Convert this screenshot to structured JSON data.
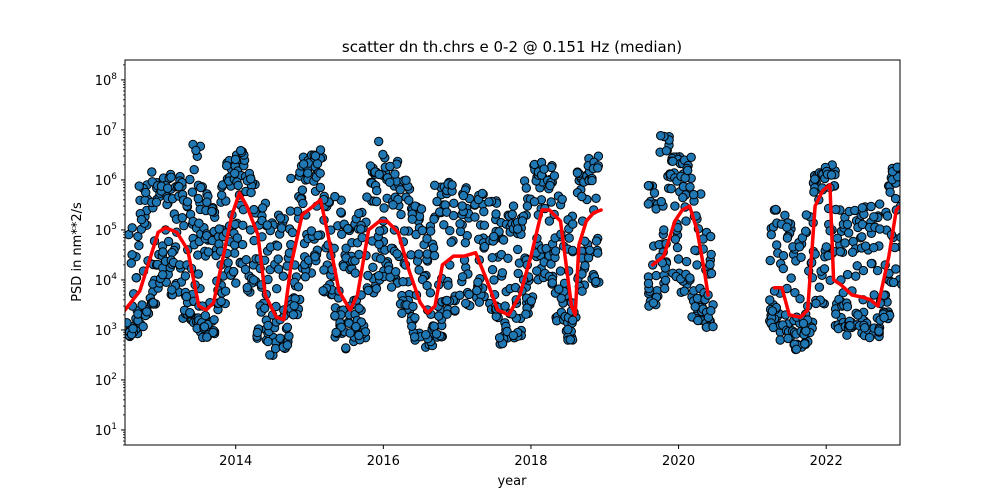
{
  "chart_data": {
    "type": "scatter",
    "title": "scatter dn th.chrs e 0-2 @ 0.151 Hz (median)",
    "xlabel": "year",
    "ylabel": "PSD in nm**2/s",
    "xlim": [
      2012.5,
      2023.0
    ],
    "ylim": [
      5,
      250000000
    ],
    "yscale": "log",
    "grid": false,
    "x_ticks": [
      2014,
      2016,
      2018,
      2020,
      2022
    ],
    "x_tick_labels": [
      "2014",
      "2016",
      "2018",
      "2020",
      "2022"
    ],
    "y_ticks": [
      10,
      100,
      1000,
      10000,
      100000,
      1000000,
      10000000,
      100000000
    ],
    "y_tick_labels": [
      "10^1",
      "10^2",
      "10^3",
      "10^4",
      "10^5",
      "10^6",
      "10^7",
      "10^8"
    ],
    "series": [
      {
        "kind": "scatter",
        "color": "#1f77b4",
        "edgecolor": "#000000",
        "x": [
          2012.6,
          2012.75,
          2012.9,
          2013.05,
          2013.2,
          2013.35,
          2013.45,
          2013.55,
          2013.65,
          2013.8,
          2013.95,
          2014.05,
          2014.2,
          2014.35,
          2014.5,
          2014.65,
          2014.8,
          2014.95,
          2015.1,
          2015.25,
          2015.4,
          2015.55,
          2015.7,
          2015.85,
          2016.0,
          2016.15,
          2016.3,
          2016.45,
          2016.6,
          2016.75,
          2016.9,
          2017.1,
          2017.3,
          2017.5,
          2017.65,
          2017.8,
          2017.95,
          2018.1,
          2018.25,
          2018.4,
          2018.55,
          2018.7,
          2018.85,
          2019.65,
          2019.8,
          2019.95,
          2020.1,
          2020.25,
          2020.4,
          2021.3,
          2021.45,
          2021.6,
          2021.75,
          2021.9,
          2022.05,
          2022.2,
          2022.35,
          2022.5,
          2022.65,
          2022.8,
          2022.95
        ],
        "y": [
          3000,
          15000,
          60000,
          100000,
          90000,
          40000,
          8000,
          3000,
          3500,
          20000,
          200000,
          500000,
          100000,
          8000,
          2000,
          2500,
          20000,
          200000,
          300000,
          50000,
          6000,
          3000,
          5000,
          60000,
          150000,
          100000,
          20000,
          5000,
          2500,
          8000,
          20000,
          25000,
          25000,
          10000,
          3000,
          4000,
          20000,
          200000,
          150000,
          15000,
          3500,
          150000,
          250000,
          20000,
          100000,
          300000,
          150000,
          20000,
          5000,
          6000,
          2000,
          1800,
          3000,
          400000,
          700000,
          10000,
          6000,
          4000,
          5000,
          20000,
          250000
        ],
        "y_low": [
          700,
          1000,
          3000,
          8000,
          5000,
          1500,
          800,
          700,
          700,
          2000,
          8000,
          20000,
          5000,
          600,
          300,
          400,
          2000,
          10000,
          20000,
          5000,
          700,
          400,
          600,
          5000,
          10000,
          6000,
          2000,
          600,
          400,
          700,
          2000,
          3000,
          3000,
          1500,
          500,
          600,
          2000,
          10000,
          8000,
          1500,
          600,
          5000,
          8000,
          3000,
          6000,
          10000,
          5000,
          1500,
          1000,
          1000,
          600,
          400,
          500,
          3000,
          8000,
          1000,
          700,
          600,
          700,
          1500,
          8000
        ],
        "y_high": [
          150000,
          800000,
          1500000,
          1500000,
          1200000,
          600000,
          7000000,
          800000,
          300000,
          1000000,
          2500000,
          4000000,
          2000000,
          500000,
          150000,
          300000,
          1500000,
          3000000,
          4000000,
          1500000,
          500000,
          150000,
          300000,
          2000000,
          6000000,
          2500000,
          1000000,
          300000,
          150000,
          800000,
          1000000,
          700000,
          600000,
          400000,
          200000,
          300000,
          1000000,
          2500000,
          2000000,
          700000,
          200000,
          1500000,
          3000000,
          800000,
          10000000,
          3000000,
          3000000,
          600000,
          100000,
          300000,
          200000,
          60000,
          200000,
          1500000,
          2000000,
          400000,
          300000,
          300000,
          400000,
          1000000,
          2000000
        ]
      },
      {
        "kind": "line",
        "color": "#ff0000",
        "segments": [
          {
            "x": [
              2012.5,
              2012.7,
              2012.85,
              2012.95,
              2013.05,
              2013.2,
              2013.35,
              2013.5,
              2013.6,
              2013.7,
              2013.85,
              2013.95,
              2014.05,
              2014.15,
              2014.3,
              2014.4,
              2014.55,
              2014.65,
              2014.75,
              2014.9,
              2015.05,
              2015.15,
              2015.25,
              2015.4,
              2015.55,
              2015.65,
              2015.8,
              2015.95,
              2016.05,
              2016.2,
              2016.35,
              2016.5,
              2016.6,
              2016.7,
              2016.8,
              2016.95,
              2017.1,
              2017.25,
              2017.4,
              2017.55,
              2017.7,
              2017.85,
              2018.0,
              2018.15,
              2018.25,
              2018.4,
              2018.55,
              2018.6,
              2018.65,
              2018.75,
              2018.85,
              2018.95
            ],
            "y": [
              2500,
              6000,
              30000,
              90000,
              110000,
              90000,
              40000,
              3000,
              2500,
              3500,
              40000,
              200000,
              550000,
              300000,
              80000,
              5000,
              1800,
              1600,
              20000,
              200000,
              300000,
              400000,
              80000,
              6000,
              2500,
              5000,
              100000,
              150000,
              150000,
              90000,
              15000,
              3500,
              2200,
              3000,
              20000,
              30000,
              30000,
              35000,
              10000,
              2500,
              2000,
              5000,
              30000,
              250000,
              250000,
              150000,
              3000,
              2000,
              50000,
              150000,
              220000,
              250000
            ]
          },
          {
            "x": [
              2019.65,
              2019.8,
              2019.95,
              2020.05,
              2020.15,
              2020.25,
              2020.35,
              2020.4
            ],
            "y": [
              20000,
              30000,
              150000,
              250000,
              300000,
              100000,
              15000,
              5000
            ]
          },
          {
            "x": [
              2021.3,
              2021.4,
              2021.5,
              2021.65,
              2021.75,
              2021.85,
              2021.95,
              2022.05,
              2022.1,
              2022.2,
              2022.35,
              2022.5,
              2022.6,
              2022.7,
              2022.85,
              2022.95,
              2023.0
            ],
            "y": [
              7000,
              7000,
              2000,
              1800,
              2500,
              300000,
              600000,
              800000,
              10000,
              8000,
              5000,
              4500,
              4000,
              3000,
              30000,
              250000,
              300000
            ]
          }
        ]
      }
    ]
  }
}
